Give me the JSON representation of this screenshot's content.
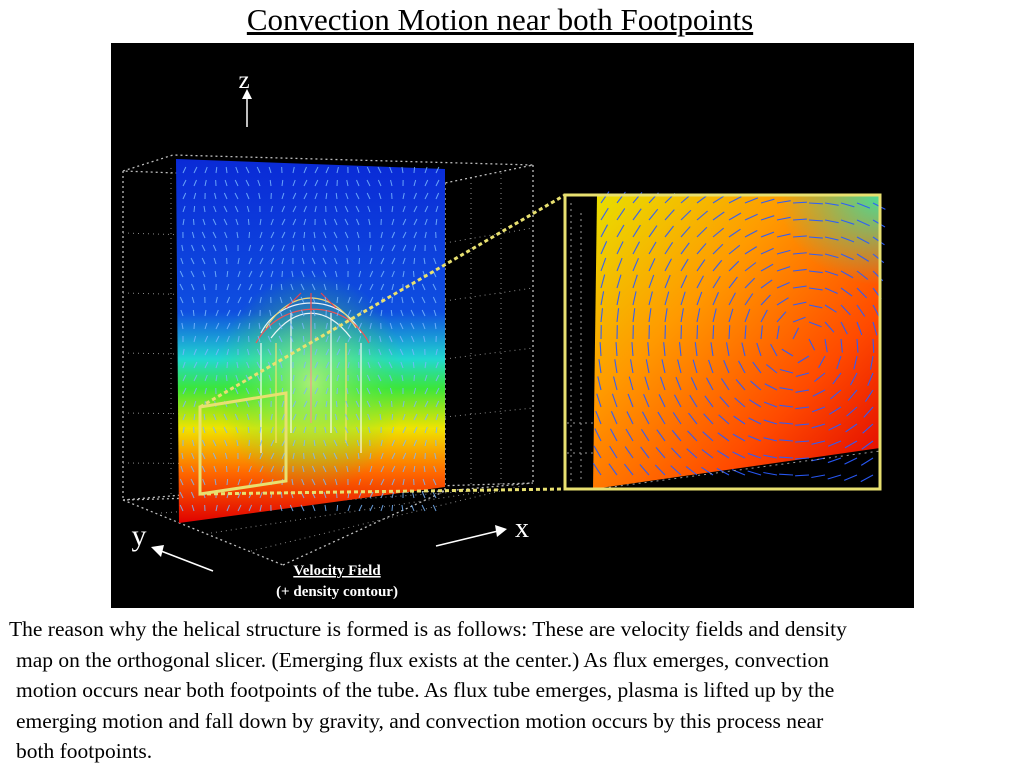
{
  "title": "Convection Motion near both Footpoints",
  "figure": {
    "axis_z": "z",
    "axis_x": "x",
    "axis_y": "y",
    "legend_line1": "Velocity Field",
    "legend_line2": "(+ density contour)",
    "highlight_color": "#e8e070",
    "colormap": [
      "#0b2ad8",
      "#19d4e8",
      "#2ee84a",
      "#f4e600",
      "#ff6a00",
      "#e40000"
    ]
  },
  "caption": {
    "line1": "The reason why the helical structure is formed is as follows: These are velocity fields and density",
    "line2": "map on the orthogonal slicer.  (Emerging flux exists at the center.)  As flux emerges, convection",
    "line3": "motion occurs near both footpoints of the tube. As flux tube emerges, plasma is lifted up by the",
    "line4": "emerging  motion and fall down by gravity, and convection motion occurs by this process near",
    "line5": "both footpoints."
  }
}
